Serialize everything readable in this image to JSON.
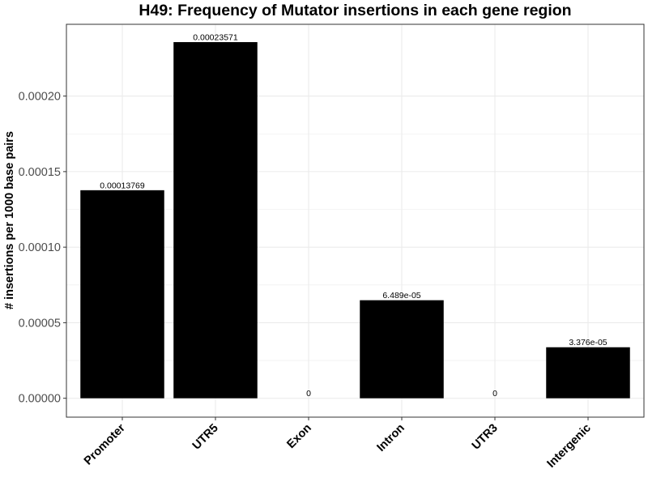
{
  "chart_data": {
    "type": "bar",
    "title": "H49: Frequency of Mutator insertions in each gene region",
    "xlabel": "",
    "ylabel": "# insertions per 1000 base pairs",
    "categories": [
      "Promoter",
      "UTR5",
      "Exon",
      "Intron",
      "UTR3",
      "Intergenic"
    ],
    "values": [
      0.00013769,
      0.00023571,
      0,
      6.489e-05,
      0,
      3.376e-05
    ],
    "value_labels": [
      "0.00013769",
      "0.00023571",
      "0",
      "6.489e-05",
      "0",
      "3.376e-05"
    ],
    "ylim": [
      -1.25e-05,
      0.0002475
    ],
    "yticks": [
      0,
      5e-05,
      0.0001,
      0.00015,
      0.0002
    ],
    "ytick_labels": [
      "0.00000",
      "0.00005",
      "0.00010",
      "0.00015",
      "0.00020"
    ],
    "grid": true,
    "bar_color": "#000000",
    "grid_color": "#ebebeb",
    "panel_border_color": "#333333",
    "legend": "none"
  }
}
